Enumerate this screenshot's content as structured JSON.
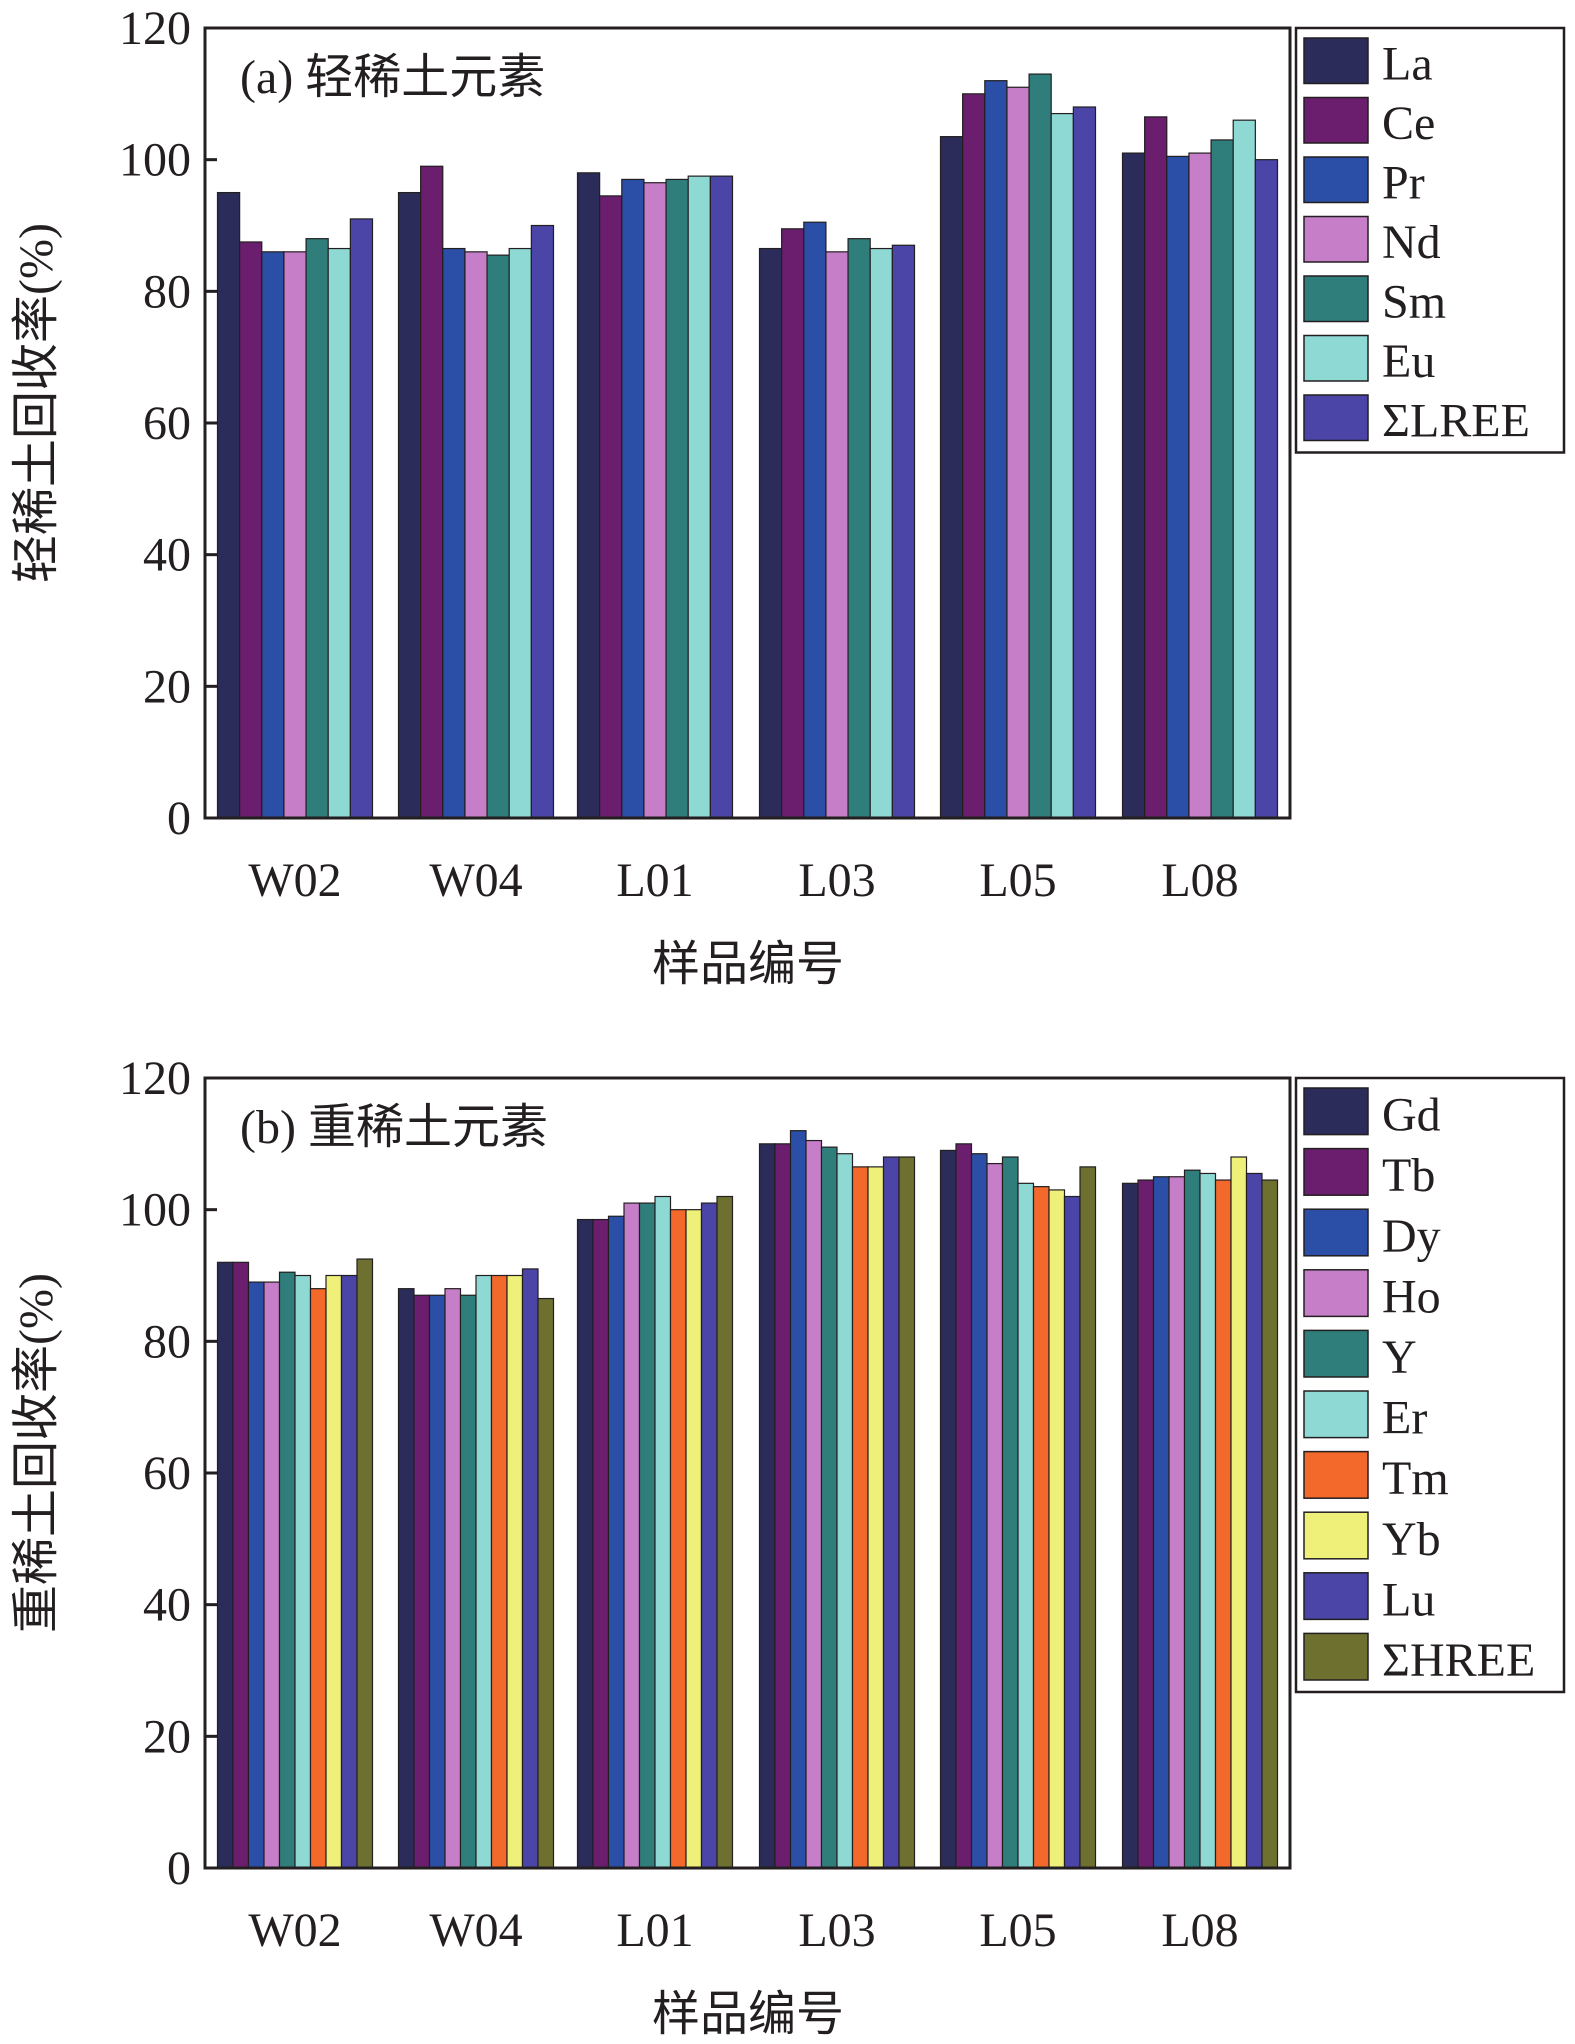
{
  "chart_data": [
    {
      "type": "bar",
      "panel_label": "(a) 轻稀土元素",
      "xlabel": "样品编号",
      "ylabel": "轻稀土回收率(%)",
      "ylim": [
        0,
        120
      ],
      "yticks": [
        0,
        20,
        40,
        60,
        80,
        100,
        120
      ],
      "categories": [
        "W02",
        "W04",
        "L01",
        "L03",
        "L05",
        "L08"
      ],
      "legend_position": "outside-right-top",
      "series": [
        {
          "name": "La",
          "color": "#2b2c5a",
          "values": [
            95,
            95,
            98,
            86.5,
            103.5,
            101
          ]
        },
        {
          "name": "Ce",
          "color": "#6b1d6e",
          "values": [
            87.5,
            99,
            94.5,
            89.5,
            110,
            106.5
          ]
        },
        {
          "name": "Pr",
          "color": "#2b4ea6",
          "values": [
            86,
            86.5,
            97,
            90.5,
            112,
            100.5
          ]
        },
        {
          "name": "Nd",
          "color": "#c77ec8",
          "values": [
            86,
            86,
            96.5,
            86,
            111,
            101
          ]
        },
        {
          "name": "Sm",
          "color": "#2f7e7c",
          "values": [
            88,
            85.5,
            97,
            88,
            113,
            103
          ]
        },
        {
          "name": "Eu",
          "color": "#8fd9d5",
          "values": [
            86.5,
            86.5,
            97.5,
            86.5,
            107,
            106
          ]
        },
        {
          "name": "ΣLREE",
          "color": "#4a45a6",
          "values": [
            91,
            90,
            97.5,
            87,
            108,
            100
          ]
        }
      ]
    },
    {
      "type": "bar",
      "panel_label": "(b) 重稀土元素",
      "xlabel": "样品编号",
      "ylabel": "重稀土回收率(%)",
      "ylim": [
        0,
        120
      ],
      "yticks": [
        0,
        20,
        40,
        60,
        80,
        100,
        120
      ],
      "categories": [
        "W02",
        "W04",
        "L01",
        "L03",
        "L05",
        "L08"
      ],
      "legend_position": "outside-right-top",
      "series": [
        {
          "name": "Gd",
          "color": "#2b2c5a",
          "values": [
            92,
            88,
            98.5,
            110,
            109,
            104
          ]
        },
        {
          "name": "Tb",
          "color": "#6b1d6e",
          "values": [
            92,
            87,
            98.5,
            110,
            110,
            104.5
          ]
        },
        {
          "name": "Dy",
          "color": "#2b4ea6",
          "values": [
            89,
            87,
            99,
            112,
            108.5,
            105
          ]
        },
        {
          "name": "Ho",
          "color": "#c77ec8",
          "values": [
            89,
            88,
            101,
            110.5,
            107,
            105
          ]
        },
        {
          "name": "Y",
          "color": "#2f7e7c",
          "values": [
            90.5,
            87,
            101,
            109.5,
            108,
            106
          ]
        },
        {
          "name": "Er",
          "color": "#8fd9d5",
          "values": [
            90,
            90,
            102,
            108.5,
            104,
            105.5
          ]
        },
        {
          "name": "Tm",
          "color": "#f2692b",
          "values": [
            88,
            90,
            100,
            106.5,
            103.5,
            104.5
          ]
        },
        {
          "name": "Yb",
          "color": "#eef07a",
          "values": [
            90,
            90,
            100,
            106.5,
            103,
            108
          ]
        },
        {
          "name": "Lu",
          "color": "#4a45a6",
          "values": [
            90,
            91,
            101,
            108,
            102,
            105.5
          ]
        },
        {
          "name": "ΣHREE",
          "color": "#6e7030",
          "values": [
            92.5,
            86.5,
            102,
            108,
            106.5,
            104.5
          ]
        }
      ]
    }
  ]
}
